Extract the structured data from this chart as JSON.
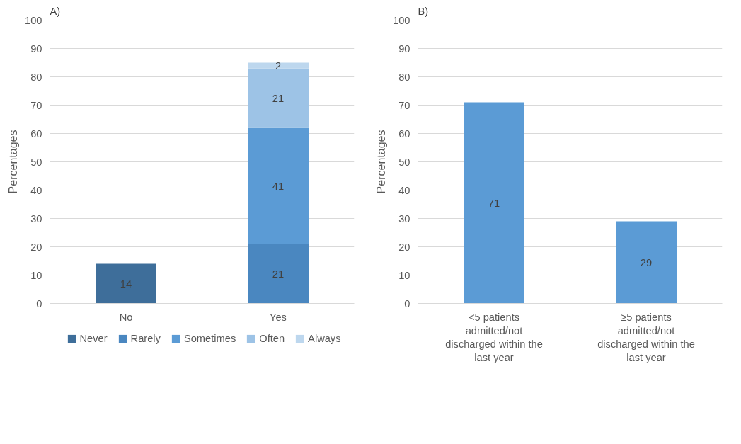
{
  "chart_data": [
    {
      "type": "bar",
      "title": "A)",
      "ylabel": "Percentages",
      "categories": [
        "No",
        "Yes"
      ],
      "stacked": true,
      "series": [
        {
          "name": "Never",
          "color": "#3e6e9a",
          "values": [
            14,
            null
          ]
        },
        {
          "name": "Rarely",
          "color": "#4a87c0",
          "values": [
            null,
            21
          ]
        },
        {
          "name": "Sometimes",
          "color": "#5b9bd5",
          "values": [
            null,
            41
          ]
        },
        {
          "name": "Often",
          "color": "#9dc3e6",
          "values": [
            null,
            21
          ]
        },
        {
          "name": "Always",
          "color": "#bdd7ee",
          "values": [
            null,
            2
          ]
        }
      ],
      "ylim": [
        0,
        100
      ],
      "yticks": [
        0,
        10,
        20,
        30,
        40,
        50,
        60,
        70,
        80,
        90,
        100
      ],
      "grid": "y",
      "legend": "bottom",
      "data_labels": true
    },
    {
      "type": "bar",
      "title": "B)",
      "ylabel": "Percentages",
      "categories": [
        "<5 patients admitted/not discharged within the last year",
        "≥5 patients admitted/not discharged within the last year"
      ],
      "values": [
        71,
        29
      ],
      "color": "#5b9bd5",
      "ylim": [
        0,
        100
      ],
      "yticks": [
        0,
        10,
        20,
        30,
        40,
        50,
        60,
        70,
        80,
        90,
        100
      ],
      "grid": "y",
      "data_labels": true
    }
  ]
}
